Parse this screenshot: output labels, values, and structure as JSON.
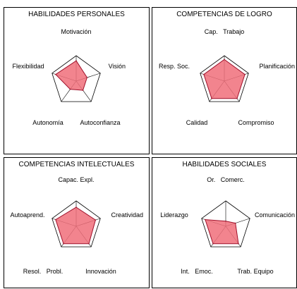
{
  "chart_data": [
    {
      "type": "radar",
      "title": "HABILIDADES PERSONALES",
      "axes": [
        "Motivación",
        "Visión",
        "Autoconfianza",
        "Autonomía",
        "Flexibilidad"
      ],
      "values": [
        0.8,
        0.45,
        0.45,
        0.4,
        0.85
      ],
      "range": [
        0,
        1
      ],
      "color": "#f06e7a",
      "stroke": "#a0102a"
    },
    {
      "type": "radar",
      "title": "COMPETENCIAS DE LOGRO",
      "axes": [
        "Cap.   Trabajo",
        "Planificación",
        "Compromiso",
        "Calidad",
        "Resp. Soc."
      ],
      "values": [
        0.85,
        0.85,
        0.85,
        0.85,
        0.85
      ],
      "range": [
        0,
        1
      ],
      "color": "#f06e7a",
      "stroke": "#a0102a"
    },
    {
      "type": "radar",
      "title": "COMPETENCIAS INTELECTUALES",
      "axes": [
        "Capac. Expl.",
        "Creatividad",
        "Innovación",
        "Resol.   Probl.",
        "Autoaprend."
      ],
      "values": [
        0.75,
        0.8,
        0.85,
        0.85,
        0.85
      ],
      "range": [
        0,
        1
      ],
      "color": "#f06e7a",
      "stroke": "#a0102a"
    },
    {
      "type": "radar",
      "title": "HABILIDADES SOCIALES",
      "axes": [
        "Or.   Comerc.",
        "Comunicación",
        "Trab. Equipo",
        "Int.   Emoc.",
        "Liderazgo"
      ],
      "values": [
        0.2,
        0.4,
        0.85,
        0.85,
        0.85
      ],
      "range": [
        0,
        1
      ],
      "color": "#f06e7a",
      "stroke": "#a0102a"
    }
  ]
}
